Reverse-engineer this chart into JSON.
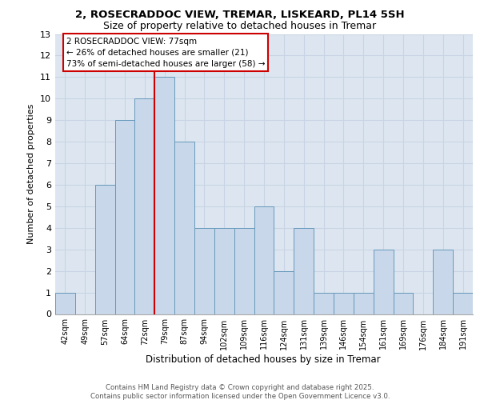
{
  "title1": "2, ROSECRADDOC VIEW, TREMAR, LISKEARD, PL14 5SH",
  "title2": "Size of property relative to detached houses in Tremar",
  "xlabel": "Distribution of detached houses by size in Tremar",
  "ylabel": "Number of detached properties",
  "categories": [
    "42sqm",
    "49sqm",
    "57sqm",
    "64sqm",
    "72sqm",
    "79sqm",
    "87sqm",
    "94sqm",
    "102sqm",
    "109sqm",
    "116sqm",
    "124sqm",
    "131sqm",
    "139sqm",
    "146sqm",
    "154sqm",
    "161sqm",
    "169sqm",
    "176sqm",
    "184sqm",
    "191sqm"
  ],
  "values": [
    1,
    0,
    6,
    9,
    10,
    11,
    8,
    4,
    4,
    4,
    5,
    2,
    4,
    1,
    1,
    1,
    3,
    1,
    0,
    3,
    1
  ],
  "bar_color": "#c8d8ea",
  "bar_edge_color": "#6699bb",
  "grid_color": "#c8d4e4",
  "background_color": "#dde6f0",
  "ref_line_x": 4.5,
  "ref_line_color": "#cc0000",
  "annotation_text": "2 ROSECRADDOC VIEW: 77sqm\n← 26% of detached houses are smaller (21)\n73% of semi-detached houses are larger (58) →",
  "annotation_box_edge_color": "#cc0000",
  "footer_text": "Contains HM Land Registry data © Crown copyright and database right 2025.\nContains public sector information licensed under the Open Government Licence v3.0.",
  "ylim_max": 13,
  "yticks": [
    0,
    1,
    2,
    3,
    4,
    5,
    6,
    7,
    8,
    9,
    10,
    11,
    12,
    13
  ]
}
